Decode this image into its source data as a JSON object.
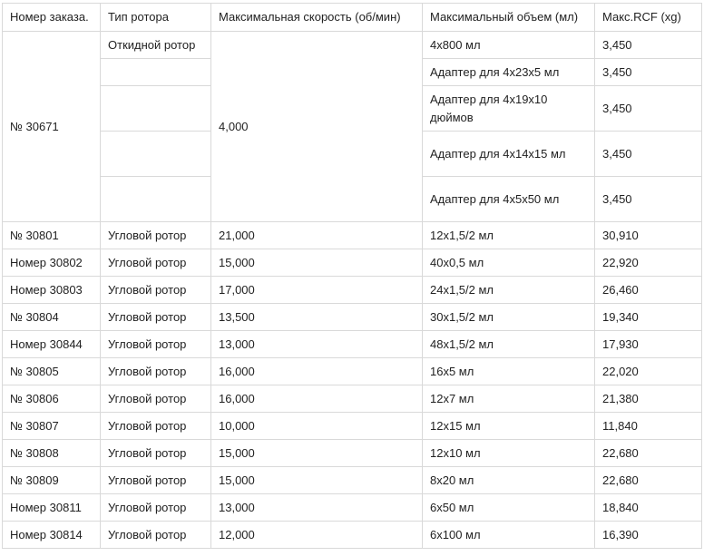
{
  "table": {
    "header": [
      "Номер заказа.",
      "Тип ротора",
      "Максимальная скорость (об/мин)",
      "Максимальный объем (мл)",
      "Макс.RCF (xg)"
    ],
    "group": {
      "order": "№ 30671",
      "rotor": "Откидной ротор",
      "speed": "4,000",
      "sub": [
        [
          "4х800 мл",
          "3,450"
        ],
        [
          "Адаптер для 4х23х5 мл",
          "3,450"
        ],
        [
          "Адаптер для 4х19х10 дюймов",
          "3,450"
        ],
        [
          "Адаптер для 4х14х15 мл",
          "3,450"
        ],
        [
          "Адаптер для 4х5х50 мл",
          "3,450"
        ]
      ]
    },
    "rows": [
      [
        "№ 30801",
        "Угловой ротор",
        "21,000",
        "12х1,5/2 мл",
        "30,910"
      ],
      [
        "Номер 30802",
        "Угловой ротор",
        "15,000",
        "40х0,5 мл",
        "22,920"
      ],
      [
        "Номер 30803",
        "Угловой ротор",
        "17,000",
        "24х1,5/2 мл",
        "26,460"
      ],
      [
        "№ 30804",
        "Угловой ротор",
        "13,500",
        "30х1,5/2 мл",
        "19,340"
      ],
      [
        "Номер 30844",
        "Угловой ротор",
        "13,000",
        "48х1,5/2 мл",
        "17,930"
      ],
      [
        "№ 30805",
        "Угловой ротор",
        "16,000",
        "16х5 мл",
        "22,020"
      ],
      [
        "№ 30806",
        "Угловой ротор",
        "16,000",
        "12х7 мл",
        "21,380"
      ],
      [
        "№ 30807",
        "Угловой ротор",
        "10,000",
        "12х15 мл",
        "11,840"
      ],
      [
        "№ 30808",
        "Угловой ротор",
        "15,000",
        "12х10 мл",
        "22,680"
      ],
      [
        "№ 30809",
        "Угловой ротор",
        "15,000",
        "8х20 мл",
        "22,680"
      ],
      [
        "Номер 30811",
        "Угловой ротор",
        "13,000",
        "6х50 мл",
        "18,840"
      ],
      [
        "Номер 30814",
        "Угловой ротор",
        "12,000",
        "6х100 мл",
        "16,390"
      ]
    ]
  }
}
